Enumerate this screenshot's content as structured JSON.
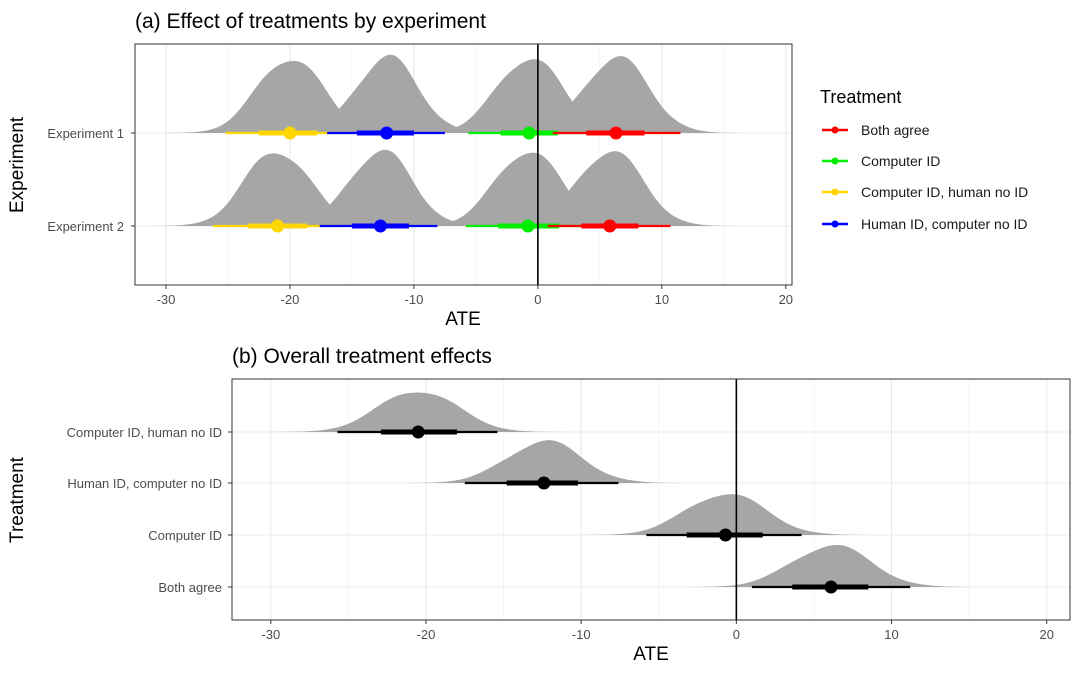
{
  "chart_data": [
    {
      "type": "ridgeline-pointinterval",
      "title": "(a) Effect of treatments by experiment",
      "xlabel": "ATE",
      "ylabel": "Experiment",
      "xlim": [
        -32.5,
        20.5
      ],
      "xticks": [
        -30,
        -20,
        -10,
        0,
        10,
        20
      ],
      "xtick_labels": [
        "-30",
        "-20",
        "-10",
        "0",
        "10",
        "20"
      ],
      "categories": [
        "Experiment 1",
        "Experiment 2"
      ],
      "vline": 0,
      "legend": {
        "title": "Treatment",
        "placement": "right",
        "entries": [
          {
            "name": "Both agree",
            "color": "#ff0000"
          },
          {
            "name": "Computer ID",
            "color": "#00ee00"
          },
          {
            "name": "Computer ID, human no ID",
            "color": "#ffd700"
          },
          {
            "name": "Human ID, computer no ID",
            "color": "#0000ff"
          }
        ]
      },
      "series": [
        {
          "name": "Computer ID, human no ID",
          "color": "#ffd700",
          "values": [
            {
              "category": "Experiment 1",
              "median": -20.0,
              "inner": [
                -22.5,
                -17.8
              ],
              "outer": [
                -25.2,
                -15.0
              ],
              "sd": 2.6
            },
            {
              "category": "Experiment 2",
              "median": -21.0,
              "inner": [
                -23.4,
                -18.6
              ],
              "outer": [
                -26.2,
                -16.0
              ],
              "sd": 2.6
            }
          ]
        },
        {
          "name": "Human ID, computer no ID",
          "color": "#0000ff",
          "values": [
            {
              "category": "Experiment 1",
              "median": -12.2,
              "inner": [
                -14.6,
                -10.0
              ],
              "outer": [
                -17.0,
                -7.5
              ],
              "sd": 2.5
            },
            {
              "category": "Experiment 2",
              "median": -12.7,
              "inner": [
                -15.0,
                -10.4
              ],
              "outer": [
                -17.6,
                -8.1
              ],
              "sd": 2.5
            }
          ]
        },
        {
          "name": "Computer ID",
          "color": "#00ee00",
          "values": [
            {
              "category": "Experiment 1",
              "median": -0.7,
              "inner": [
                -3.0,
                1.6
              ],
              "outer": [
                -5.6,
                4.2
              ],
              "sd": 2.6
            },
            {
              "category": "Experiment 2",
              "median": -0.8,
              "inner": [
                -3.2,
                1.7
              ],
              "outer": [
                -5.8,
                4.3
              ],
              "sd": 2.6
            }
          ]
        },
        {
          "name": "Both agree",
          "color": "#ff0000",
          "values": [
            {
              "category": "Experiment 1",
              "median": 6.3,
              "inner": [
                3.9,
                8.6
              ],
              "outer": [
                1.2,
                11.5
              ],
              "sd": 2.6
            },
            {
              "category": "Experiment 2",
              "median": 5.8,
              "inner": [
                3.5,
                8.1
              ],
              "outer": [
                0.8,
                10.7
              ],
              "sd": 2.6
            }
          ]
        }
      ]
    },
    {
      "type": "ridgeline-pointinterval",
      "title": "(b) Overall treatment effects",
      "xlabel": "ATE",
      "ylabel": "Treatment",
      "xlim": [
        -32.5,
        21.5
      ],
      "xticks": [
        -30,
        -20,
        -10,
        0,
        10,
        20
      ],
      "xtick_labels": [
        "-30",
        "-20",
        "-10",
        "0",
        "10",
        "20"
      ],
      "categories": [
        "Computer ID, human no ID",
        "Human ID, computer no ID",
        "Computer ID",
        "Both agree"
      ],
      "vline": 0,
      "values": [
        {
          "category": "Computer ID, human no ID",
          "median": -20.5,
          "inner": [
            -22.9,
            -18.0
          ],
          "outer": [
            -25.7,
            -15.4
          ],
          "sd": 2.5
        },
        {
          "category": "Human ID, computer no ID",
          "median": -12.4,
          "inner": [
            -14.8,
            -10.2
          ],
          "outer": [
            -17.5,
            -7.6
          ],
          "sd": 2.4
        },
        {
          "category": "Computer ID",
          "median": -0.7,
          "inner": [
            -3.2,
            1.7
          ],
          "outer": [
            -5.8,
            4.2
          ],
          "sd": 2.5
        },
        {
          "category": "Both agree",
          "median": 6.1,
          "inner": [
            3.6,
            8.5
          ],
          "outer": [
            1.0,
            11.2
          ],
          "sd": 2.5
        }
      ]
    }
  ]
}
